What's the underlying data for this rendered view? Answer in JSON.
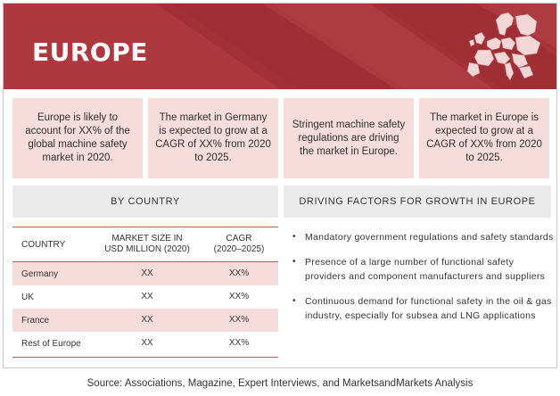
{
  "banner": {
    "title": "EUROPE",
    "map_icon": "europe-map-icon"
  },
  "highlights": [
    "Europe is likely to account for XX% of the global machine safety market in 2020.",
    "The market in Germany is expected to grow at a CAGR of XX% from 2020 to 2025.",
    "Stringent machine safety regulations are driving the market in Europe.",
    "The market in Europe is expected to grow at a CAGR of XX% from 2020 to 2025."
  ],
  "by_country": {
    "heading": "BY COUNTRY",
    "columns": {
      "country": "COUNTRY",
      "market_line1": "MARKET SIZE IN",
      "market_line2": "USD MILLION (2020)",
      "cagr_line1": "CAGR",
      "cagr_line2": "(2020–2025)"
    },
    "rows": [
      {
        "country": "Germany",
        "market": "XX",
        "cagr": "XX%"
      },
      {
        "country": "UK",
        "market": "XX",
        "cagr": "XX%"
      },
      {
        "country": "France",
        "market": "XX",
        "cagr": "XX%"
      },
      {
        "country": "Rest of Europe",
        "market": "XX",
        "cagr": "XX%"
      }
    ]
  },
  "driving_factors": {
    "heading": "DRIVING FACTORS FOR GROWTH IN EUROPE",
    "bullet": "•",
    "items": [
      "Mandatory government regulations and safety standards",
      "Presence of a large number of functional safety providers and component manufacturers and suppliers",
      "Continuous demand for functional safety in the oil & gas industry, especially for subsea and LNG applications"
    ]
  },
  "source": "Source: Associations, Magazine, Expert Interviews, and MarketsandMarkets Analysis",
  "colors": {
    "banner": "#a9333a",
    "box": "#f7dcdc",
    "header_bg": "#ebebeb",
    "rule": "#b85a5a"
  }
}
